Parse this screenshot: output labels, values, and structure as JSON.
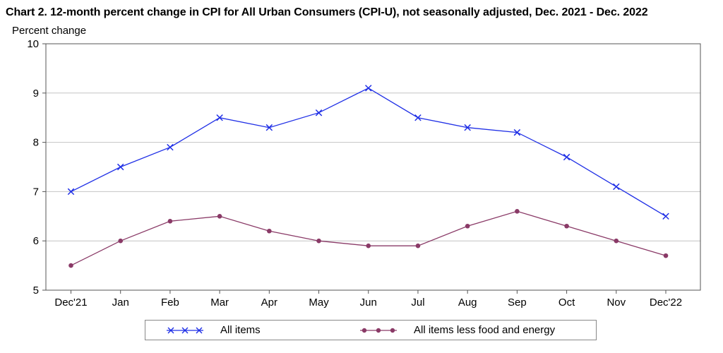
{
  "chart_data": {
    "type": "line",
    "title": "Chart 2. 12-month percent change in CPI for All Urban Consumers (CPI-U), not seasonally adjusted, Dec. 2021 - Dec. 2022",
    "ylabel": "Percent change",
    "xlabel": "",
    "categories": [
      "Dec'21",
      "Jan",
      "Feb",
      "Mar",
      "Apr",
      "May",
      "Jun",
      "Jul",
      "Aug",
      "Sep",
      "Oct",
      "Nov",
      "Dec'22"
    ],
    "ylim": [
      5,
      10
    ],
    "yticks": [
      5,
      6,
      7,
      8,
      9,
      10
    ],
    "grid": "horizontal",
    "legend_position": "bottom",
    "series": [
      {
        "name": "All items",
        "color": "#1f2fe6",
        "marker": "x",
        "values": [
          7.0,
          7.5,
          7.9,
          8.5,
          8.3,
          8.6,
          9.1,
          8.5,
          8.3,
          8.2,
          7.7,
          7.1,
          6.5
        ]
      },
      {
        "name": "All items less food and energy",
        "color": "#8a3a67",
        "marker": "circle",
        "values": [
          5.5,
          6.0,
          6.4,
          6.5,
          6.2,
          6.0,
          5.9,
          5.9,
          6.3,
          6.6,
          6.3,
          6.0,
          5.7
        ]
      }
    ]
  }
}
